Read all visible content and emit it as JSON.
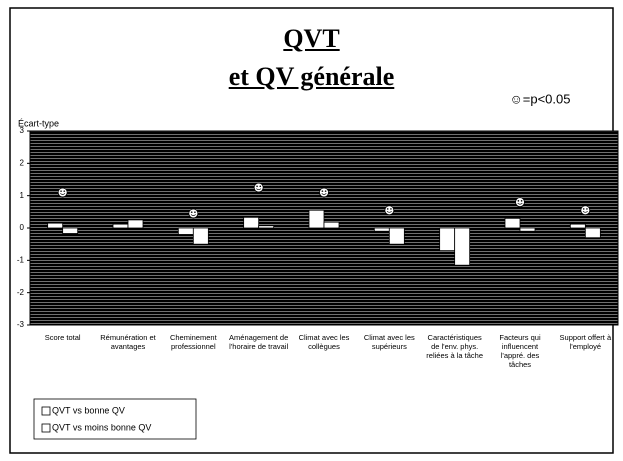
{
  "chart_data": {
    "type": "bar",
    "title": "QVT",
    "subtitle": "et QV générale",
    "note": "☺=p<0.05",
    "y_label": "Écart-type",
    "categories": [
      "Score total",
      "Rémunération et avantages",
      "Cheminement professionnel",
      "Aménagement de l'horaire de travail",
      "Climat avec les collègues",
      "Climat avec les supérieurs",
      "Caractéristiques de l'env. phys. reliées à la tâche",
      "Facteurs qui influencent l'appré. des tâches",
      "Support offert à l'employé"
    ],
    "series": [
      {
        "name": "QVT vs bonne QV",
        "color": "#ffffff",
        "values": [
          0.15,
          0.12,
          -0.2,
          0.33,
          0.55,
          -0.1,
          -0.7,
          0.3,
          0.12
        ]
      },
      {
        "name": "QVT vs moins bonne QV",
        "color": "#ffffff",
        "values": [
          -0.17,
          0.25,
          -0.5,
          0.07,
          0.18,
          -0.5,
          -1.15,
          -0.1,
          -0.3
        ]
      }
    ],
    "significance_markers": [
      1.1,
      null,
      0.45,
      1.25,
      1.1,
      0.55,
      null,
      0.8,
      0.55
    ],
    "ylim": [
      -3,
      3
    ],
    "yticks": [
      -3,
      -2,
      -1,
      0,
      1,
      2,
      3
    ],
    "legend": "bottom-left"
  }
}
